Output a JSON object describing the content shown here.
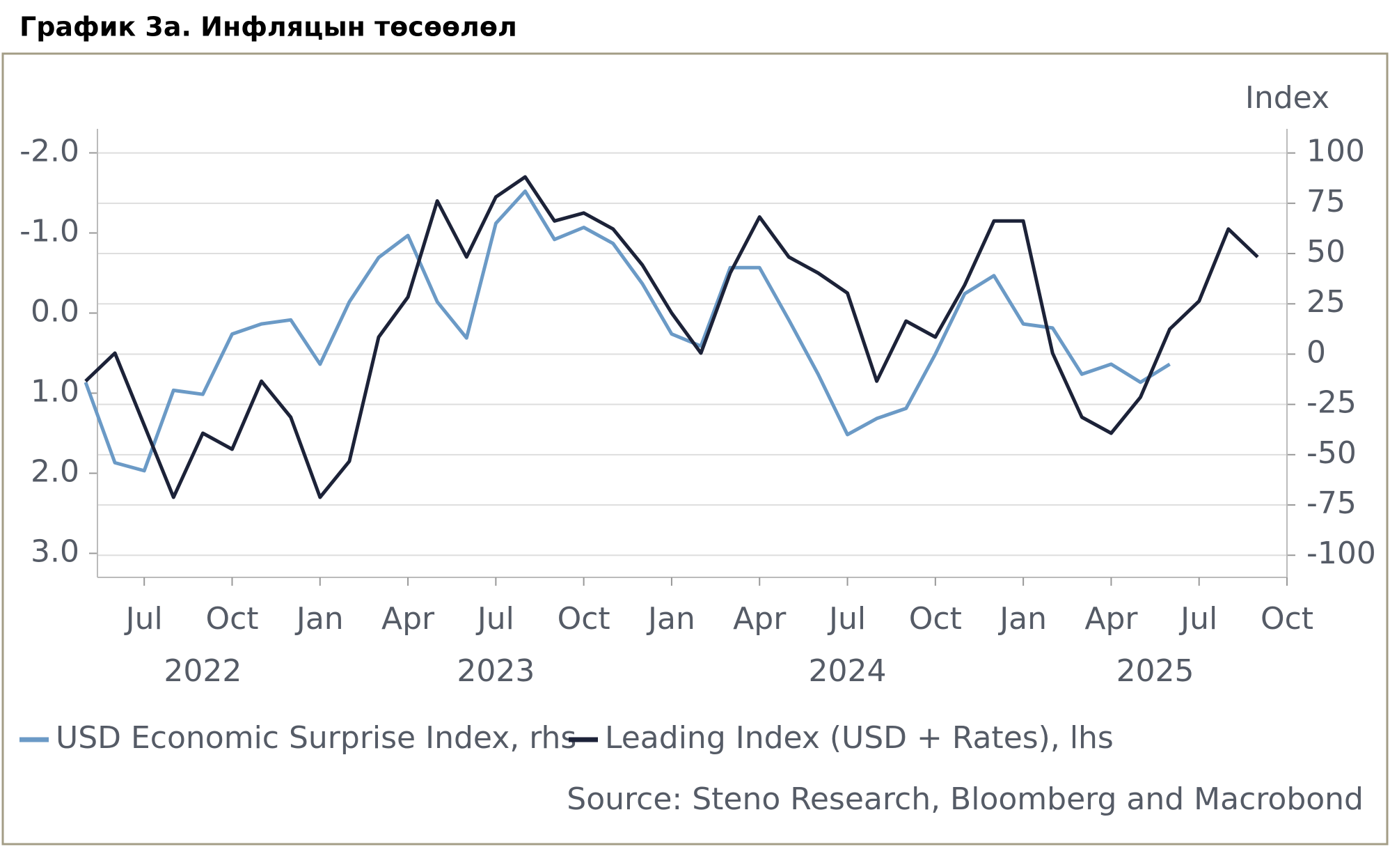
{
  "chart_data": {
    "type": "line",
    "title": "График 3а. Инфляцын төсөөлөл",
    "y2_label": "Index",
    "source": "Source: Steno Research, Bloomberg and Macrobond",
    "x": [
      "2022-05",
      "2022-06",
      "2022-07",
      "2022-08",
      "2022-09",
      "2022-10",
      "2022-11",
      "2022-12",
      "2023-01",
      "2023-02",
      "2023-03",
      "2023-04",
      "2023-05",
      "2023-06",
      "2023-07",
      "2023-08",
      "2023-09",
      "2023-10",
      "2023-11",
      "2023-12",
      "2024-01",
      "2024-02",
      "2024-03",
      "2024-04",
      "2024-05",
      "2024-06",
      "2024-07",
      "2024-08",
      "2024-09",
      "2024-10",
      "2024-11",
      "2024-12",
      "2025-01",
      "2025-02",
      "2025-03",
      "2025-04",
      "2025-05",
      "2025-06",
      "2025-07",
      "2025-08",
      "2025-09"
    ],
    "xlim": [
      "2022-05",
      "2025-10"
    ],
    "xticks": [
      {
        "value": "2022-07",
        "label": "Jul"
      },
      {
        "value": "2022-10",
        "label": "Oct"
      },
      {
        "value": "2023-01",
        "label": "Jan"
      },
      {
        "value": "2023-04",
        "label": "Apr"
      },
      {
        "value": "2023-07",
        "label": "Jul"
      },
      {
        "value": "2023-10",
        "label": "Oct"
      },
      {
        "value": "2024-01",
        "label": "Jan"
      },
      {
        "value": "2024-04",
        "label": "Apr"
      },
      {
        "value": "2024-07",
        "label": "Jul"
      },
      {
        "value": "2024-10",
        "label": "Oct"
      },
      {
        "value": "2025-01",
        "label": "Jan"
      },
      {
        "value": "2025-04",
        "label": "Apr"
      },
      {
        "value": "2025-07",
        "label": "Jul"
      },
      {
        "value": "2025-10",
        "label": "Oct"
      }
    ],
    "year_labels": [
      "2022",
      "2023",
      "2024",
      "2025"
    ],
    "ylim": [
      -2.3,
      3.3
    ],
    "y_inverted": true,
    "yticks": [
      {
        "value": -2,
        "label": "-2.0"
      },
      {
        "value": -1,
        "label": "-1.0"
      },
      {
        "value": 0,
        "label": "0.0"
      },
      {
        "value": 1,
        "label": "1.0"
      },
      {
        "value": 2,
        "label": "2.0"
      },
      {
        "value": 3,
        "label": "3.0"
      }
    ],
    "y2lim": [
      -111,
      112
    ],
    "y2ticks": [
      100,
      75,
      50,
      25,
      0,
      -25,
      -50,
      -75,
      -100
    ],
    "grid": true,
    "legend": "bottom-left",
    "series": [
      {
        "name": "USD Economic Surprise Index, rhs",
        "color": "#6b9ac6",
        "axis": "y2",
        "values": [
          -14,
          -54,
          -58,
          -18,
          -20,
          10,
          15,
          17,
          -5,
          26,
          48,
          59,
          26,
          8,
          65,
          81,
          57,
          63,
          55,
          35,
          10,
          4,
          43,
          43,
          17,
          -10,
          -40,
          -32,
          -27,
          0,
          30,
          39,
          15,
          13,
          -10,
          -5,
          -14,
          -5,
          null,
          null,
          null
        ]
      },
      {
        "name": "Leading Index (USD + Rates), lhs",
        "color": "#1c2238",
        "axis": "y",
        "values": [
          0.85,
          0.5,
          1.4,
          2.3,
          1.5,
          1.7,
          0.85,
          1.3,
          2.3,
          1.85,
          0.3,
          -0.2,
          -1.4,
          -0.7,
          -1.45,
          -1.7,
          -1.15,
          -1.25,
          -1.05,
          -0.6,
          0.0,
          0.5,
          -0.5,
          -1.2,
          -0.7,
          -0.5,
          -0.25,
          0.85,
          0.1,
          0.3,
          -0.35,
          -1.15,
          -1.15,
          0.5,
          1.3,
          1.5,
          1.05,
          0.2,
          -0.15,
          -1.05,
          -0.7
        ]
      }
    ]
  }
}
